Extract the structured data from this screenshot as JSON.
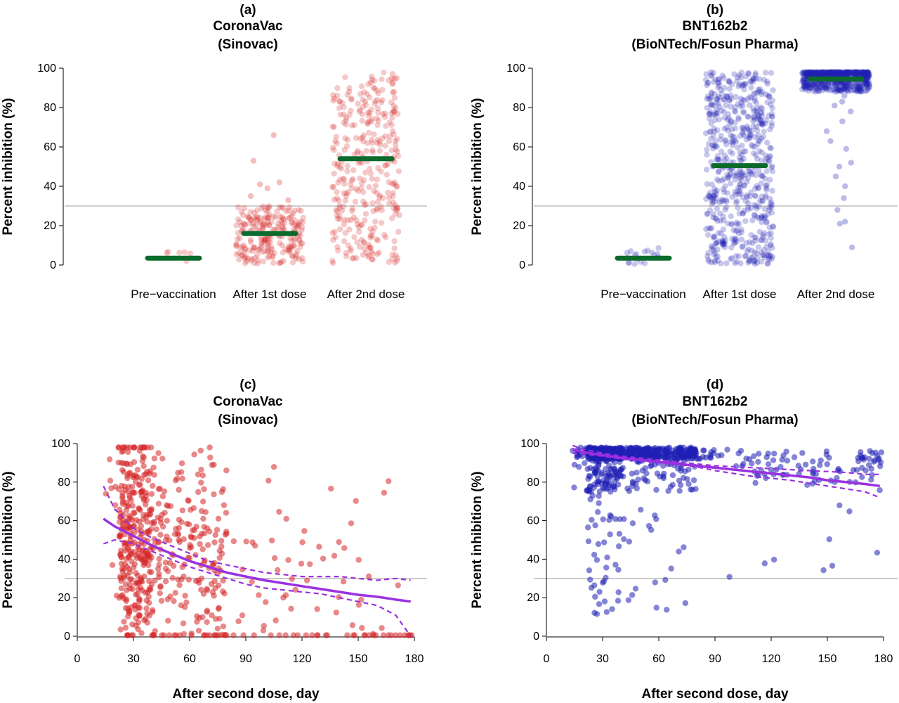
{
  "colors": {
    "red_points": "#d62728",
    "blue_points": "#1f1fb4",
    "median_bar": "#0b6b2c",
    "fit_line": "#9b30e0",
    "threshold": "#bdbdbd"
  },
  "chart_data": [
    {
      "id": "a",
      "type": "scatter",
      "label": "(a)",
      "title": "CoronaVac",
      "subtitle": "(Sinovac)",
      "ylabel": "Percent inhibition (%)",
      "xlabel": "",
      "ylim": [
        0,
        100
      ],
      "yticks": [
        0,
        20,
        40,
        60,
        80,
        100
      ],
      "threshold": 30,
      "categories": [
        "Pre−vaccination",
        "After 1st dose",
        "After 2nd dose"
      ],
      "medians": [
        3.5,
        16,
        54
      ],
      "point_color": "red",
      "groups": [
        {
          "category": "Pre−vaccination",
          "n": 6,
          "min": 0.5,
          "max": 9,
          "dist": "uniform"
        },
        {
          "category": "After 1st dose",
          "n": 230,
          "min": 0.5,
          "max": 30,
          "dist": "uniform",
          "extra": [
            42,
            53,
            66,
            41,
            39,
            35,
            33
          ]
        },
        {
          "category": "After 2nd dose",
          "n": 330,
          "min": 1,
          "max": 98,
          "dist": "uniform"
        }
      ]
    },
    {
      "id": "b",
      "type": "scatter",
      "label": "(b)",
      "title": "BNT162b2",
      "subtitle": "(BioNTech/Fosun Pharma)",
      "ylabel": "Percent inhibition (%)",
      "xlabel": "",
      "ylim": [
        0,
        100
      ],
      "yticks": [
        0,
        20,
        40,
        60,
        80,
        100
      ],
      "threshold": 30,
      "categories": [
        "Pre−vaccination",
        "After 1st dose",
        "After 2nd dose"
      ],
      "medians": [
        3.5,
        50.5,
        94.5
      ],
      "point_color": "blue",
      "groups": [
        {
          "category": "Pre−vaccination",
          "n": 18,
          "min": 0.5,
          "max": 9,
          "dist": "uniform"
        },
        {
          "category": "After 1st dose",
          "n": 620,
          "min": 0.5,
          "max": 98,
          "dist": "uniform"
        },
        {
          "category": "After 2nd dose",
          "n": 600,
          "min": 88,
          "max": 98,
          "dist": "high",
          "extra": [
            78,
            73,
            68,
            63,
            59,
            52,
            50,
            45,
            40,
            34,
            28,
            22,
            21,
            9,
            83,
            81,
            86
          ]
        }
      ]
    },
    {
      "id": "c",
      "type": "scatter",
      "label": "(c)",
      "title": "CoronaVac",
      "subtitle": "(Sinovac)",
      "ylabel": "Percent inhibition (%)",
      "xlabel": "After second dose, day",
      "xlim": [
        0,
        180
      ],
      "xticks": [
        0,
        30,
        60,
        90,
        120,
        150,
        180
      ],
      "ylim": [
        0,
        100
      ],
      "yticks": [
        0,
        20,
        40,
        60,
        80,
        100
      ],
      "threshold": 30,
      "point_color": "red",
      "fit": {
        "x": [
          14,
          20,
          30,
          40,
          50,
          60,
          70,
          80,
          90,
          100,
          110,
          120,
          130,
          140,
          150,
          160,
          170,
          178
        ],
        "y": [
          61,
          57,
          52,
          47,
          43,
          39,
          36,
          33,
          31,
          29,
          27.5,
          26,
          24.5,
          23,
          21.5,
          20.5,
          19,
          18
        ],
        "lower": [
          48,
          50,
          48,
          44,
          40,
          36,
          33,
          30,
          27,
          25,
          24,
          23,
          22,
          20,
          18,
          16,
          11,
          0
        ],
        "upper": [
          78,
          66,
          56,
          51,
          47,
          43,
          39,
          37,
          35,
          33,
          32,
          31,
          31,
          31,
          30,
          29,
          30,
          29
        ]
      }
    },
    {
      "id": "d",
      "type": "scatter",
      "label": "(d)",
      "title": "BNT162b2",
      "subtitle": "(BioNTech/Fosun Pharma)",
      "ylabel": "Percent inhibition (%)",
      "xlabel": "After second dose, day",
      "xlim": [
        0,
        180
      ],
      "xticks": [
        0,
        30,
        60,
        90,
        120,
        150,
        180
      ],
      "ylim": [
        0,
        100
      ],
      "yticks": [
        0,
        20,
        40,
        60,
        80,
        100
      ],
      "threshold": 30,
      "point_color": "blue",
      "fit": {
        "x": [
          14,
          20,
          30,
          40,
          50,
          60,
          70,
          80,
          90,
          100,
          110,
          120,
          130,
          140,
          150,
          160,
          170,
          178
        ],
        "y": [
          97,
          95.5,
          94,
          92.5,
          91.5,
          90.5,
          89.5,
          88.5,
          87.5,
          86.5,
          85.5,
          84.5,
          83.5,
          82.5,
          81,
          80,
          79,
          78
        ],
        "lower": [
          95,
          94.5,
          93.5,
          92,
          91,
          90,
          89,
          88,
          86,
          84.5,
          83,
          82,
          81,
          79.5,
          78,
          76.5,
          75,
          72
        ],
        "upper": [
          99,
          97,
          95,
          93.5,
          92.5,
          91.5,
          90.5,
          89.5,
          88.5,
          88,
          87.5,
          87,
          86.5,
          86,
          85.5,
          85,
          84,
          84
        ]
      }
    }
  ]
}
